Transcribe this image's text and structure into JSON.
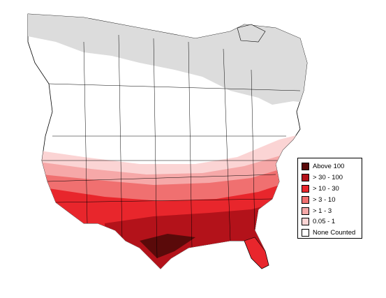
{
  "map": {
    "colors": {
      "none_counted": "#ffffff",
      "unsurveyed": "#dcdcdc",
      "outline": "#000000"
    }
  },
  "legend": {
    "items": [
      {
        "label": "Above 100",
        "color": "#5a0a0a"
      },
      {
        "label": "> 30 - 100",
        "color": "#b3121a"
      },
      {
        "label": "> 10 - 30",
        "color": "#e8262c"
      },
      {
        "label": "> 3 - 10",
        "color": "#f07070"
      },
      {
        "label": "> 1 - 3",
        "color": "#f6a8a8"
      },
      {
        "label": "0.05 - 1",
        "color": "#fbd4d4"
      },
      {
        "label": "None Counted",
        "color": "#ffffff"
      }
    ]
  }
}
